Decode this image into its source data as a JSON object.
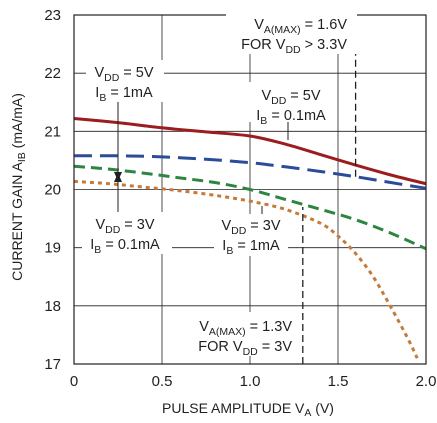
{
  "chart_data": {
    "type": "line",
    "xlabel": "PULSE AMPLITUDE V",
    "xlabel_sub": "A",
    "xlabel_unit": " (V)",
    "ylabel": "CURRENT GAIN A",
    "ylabel_sub": "IB",
    "ylabel_unit": " (mA/mA)",
    "xlim": [
      0,
      2.0
    ],
    "ylim": [
      17,
      23
    ],
    "x_ticks": [
      "0",
      "0.5",
      "1.0",
      "1.5",
      "2.0"
    ],
    "y_ticks": [
      "17",
      "18",
      "19",
      "20",
      "21",
      "22",
      "23"
    ],
    "grid": true,
    "series": [
      {
        "color": "#9b1d20",
        "dash": "solid",
        "x": [
          0,
          0.25,
          0.5,
          0.75,
          1.0,
          1.2,
          1.4,
          1.6,
          1.8,
          2.0
        ],
        "y": [
          21.22,
          21.15,
          21.06,
          20.99,
          20.92,
          20.78,
          20.6,
          20.42,
          20.25,
          20.1
        ]
      },
      {
        "color": "#2b4b9b",
        "dash": "long",
        "x": [
          0,
          0.25,
          0.5,
          0.75,
          1.0,
          1.2,
          1.4,
          1.6,
          1.8,
          2.0
        ],
        "y": [
          20.58,
          20.58,
          20.56,
          20.52,
          20.46,
          20.39,
          20.31,
          20.22,
          20.12,
          20.02
        ]
      },
      {
        "color": "#2e8540",
        "dash": "medium",
        "x": [
          0,
          0.2,
          0.4,
          0.6,
          0.8,
          1.0,
          1.2,
          1.4,
          1.6,
          1.8,
          2.0
        ],
        "y": [
          20.4,
          20.35,
          20.28,
          20.2,
          20.12,
          20.0,
          19.83,
          19.66,
          19.48,
          19.25,
          18.98
        ]
      },
      {
        "color": "#c47a3a",
        "dash": "dot",
        "x": [
          0,
          0.2,
          0.4,
          0.6,
          0.8,
          1.0,
          1.2,
          1.4,
          1.5,
          1.6,
          1.7,
          1.8,
          1.9,
          1.95
        ],
        "y": [
          20.14,
          20.1,
          20.04,
          19.98,
          19.9,
          19.8,
          19.66,
          19.42,
          19.2,
          18.9,
          18.5,
          17.98,
          17.42,
          17.1
        ]
      }
    ],
    "markers": [
      {
        "x": 1.6,
        "y_from": 20.22,
        "y_to": 23
      },
      {
        "x": 1.3,
        "y_from": 17,
        "y_to": 19.7
      }
    ],
    "annotations": {
      "vamax_high": {
        "line1_pre": "V",
        "line1_sub": "A(MAX)",
        "line1_post": " = 1.6V",
        "line2_pre": "FOR V",
        "line2_sub": "DD",
        "line2_post": " > 3.3V"
      },
      "vdd5_ib1": {
        "line1_pre": "V",
        "line1_sub": "DD",
        "line1_post": " = 5V",
        "line2_pre": "I",
        "line2_sub": "B",
        "line2_post": " = 1mA"
      },
      "vdd5_ib01": {
        "line1_pre": "V",
        "line1_sub": "DD",
        "line1_post": " = 5V",
        "line2_pre": "I",
        "line2_sub": "B",
        "line2_post": " = 0.1mA"
      },
      "vdd3_ib01": {
        "line1_pre": "V",
        "line1_sub": "DD",
        "line1_post": " = 3V",
        "line2_pre": "I",
        "line2_sub": "B",
        "line2_post": " = 0.1mA"
      },
      "vdd3_ib1": {
        "line1_pre": "V",
        "line1_sub": "DD",
        "line1_post": " = 3V",
        "line2_pre": "I",
        "line2_sub": "B",
        "line2_post": " = 1mA"
      },
      "vamax_low": {
        "line1_pre": "V",
        "line1_sub": "A(MAX)",
        "line1_post": " = 1.3V",
        "line2_pre": "FOR V",
        "line2_sub": "DD",
        "line2_post": " = 3V"
      }
    }
  }
}
